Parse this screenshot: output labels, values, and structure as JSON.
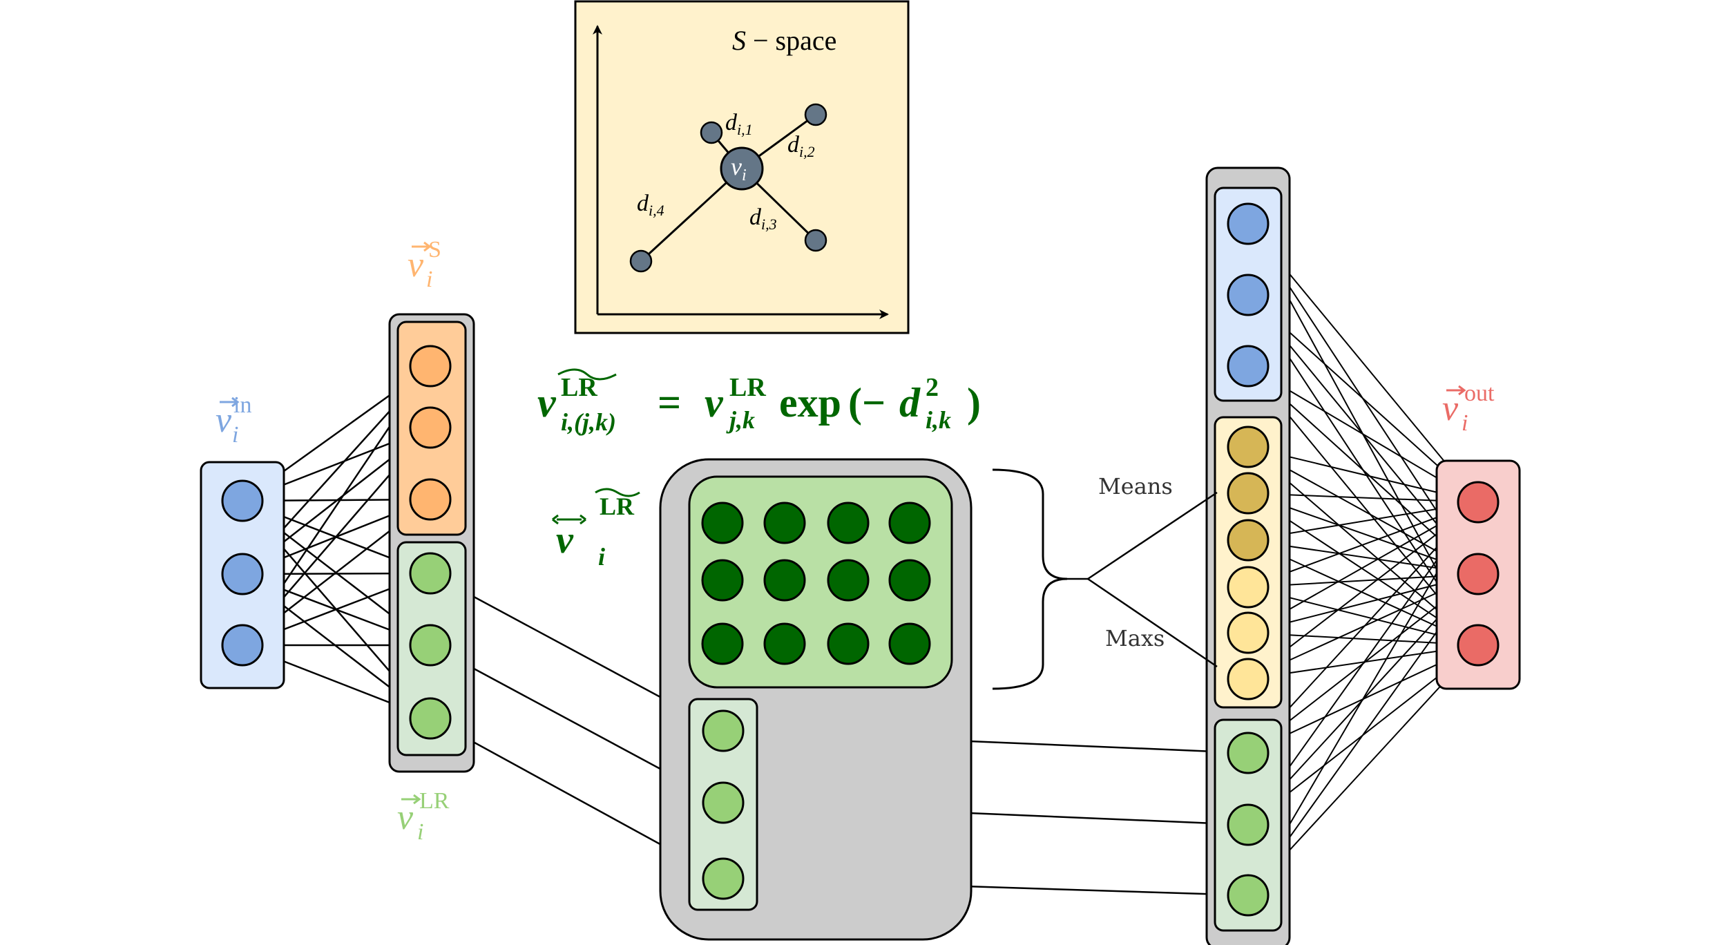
{
  "labels": {
    "v_in": {
      "base": "v",
      "sub": "i",
      "sup": "in"
    },
    "v_s": {
      "base": "v",
      "sub": "i",
      "sup": "S"
    },
    "v_lr": {
      "base": "v",
      "sub": "i",
      "sup": "LR"
    },
    "v_out": {
      "base": "v",
      "sub": "i",
      "sup": "out"
    },
    "v_tilde": {
      "base": "v",
      "sub": "i",
      "sup": "LR"
    }
  },
  "equation": {
    "lhs_base": "v",
    "lhs_sup": "LR",
    "lhs_sub": "i,(j,k)",
    "equals": "=",
    "rhs_base": "v",
    "rhs_sup": "LR",
    "rhs_sub": "j,k",
    "func": "exp",
    "open": "(−",
    "d_base": "d",
    "d_sup": "2",
    "d_sub": "i,k",
    "close": ")"
  },
  "s_space": {
    "title_var": "S",
    "title_rest": " − space",
    "center_label": {
      "base": "v",
      "sub": "i"
    },
    "distances": [
      {
        "base": "d",
        "sub": "i,1"
      },
      {
        "base": "d",
        "sub": "i,2"
      },
      {
        "base": "d",
        "sub": "i,3"
      },
      {
        "base": "d",
        "sub": "i,4"
      }
    ]
  },
  "aggregation": {
    "means_label": "Means",
    "maxs_label": "Maxs"
  },
  "colors": {
    "blue": "#7ea6e0",
    "blue_panel": "#dae8fc",
    "orange": "#ffb570",
    "orange_panel": "#ffcc99",
    "green": "#97d077",
    "green_panel": "#d5e8d4",
    "dark_green": "#006600",
    "dark_green_panel": "#b9e0a5",
    "gold": "#d6b656",
    "yellow": "#ffe599",
    "yellow_panel": "#fff2cc",
    "red": "#ea6b66",
    "red_panel": "#f8cecc",
    "gray": "#cccccc",
    "s_space_bg": "#fff2cc",
    "s_node": "#647687",
    "label_green": "#006600",
    "label_blue": "#7ea6e0",
    "label_orange": "#ffb570",
    "label_lightgreen": "#97d077",
    "label_red": "#ea6b66"
  }
}
